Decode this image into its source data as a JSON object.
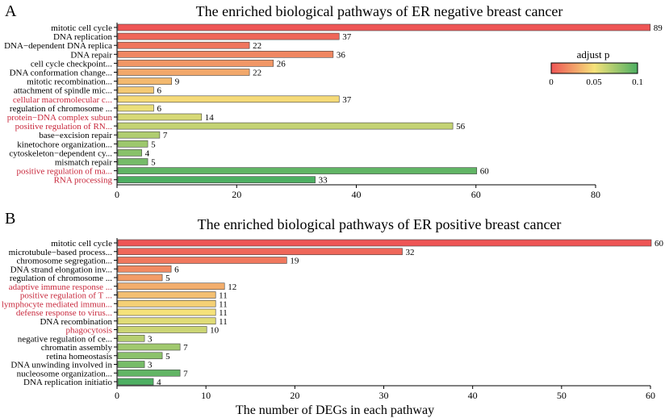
{
  "chart_data": [
    {
      "type": "bar",
      "orientation": "horizontal",
      "panel": "A",
      "title": "The enriched biological pathways of ER negative breast cancer",
      "categories": [
        "mitotic cell cycle",
        "DNA replication",
        "DNA−dependent DNA replica",
        "DNA repair",
        "cell cycle checkpoint...",
        "DNA conformation change...",
        "mitotic recombination...",
        "attachment of spindle mic...",
        "cellular macromolecular c...",
        "regulation of chromosome ...",
        "protein−DNA complex subun",
        "positive regulation of RN...",
        "base−excision repair",
        "kinetochore organization...",
        "cytoskeleton−dependent cy...",
        "mismatch repair",
        "positive regulation of ma...",
        "RNA processing"
      ],
      "values": [
        89,
        37,
        22,
        36,
        26,
        22,
        9,
        6,
        37,
        6,
        14,
        56,
        7,
        5,
        4,
        5,
        60,
        33
      ],
      "highlighted": [
        false,
        false,
        false,
        false,
        false,
        false,
        false,
        false,
        true,
        false,
        true,
        true,
        false,
        false,
        false,
        false,
        true,
        true
      ],
      "xlim": [
        0,
        80
      ],
      "xticks": [
        0,
        20,
        40,
        60,
        80
      ],
      "xlabel": ""
    },
    {
      "type": "bar",
      "orientation": "horizontal",
      "panel": "B",
      "title": "The enriched biological pathways of ER positive breast cancer",
      "categories": [
        "mitotic cell cycle",
        "microtubule−based process...",
        "chromosome segregation...",
        "DNA strand elongation inv...",
        "regulation of chromosome ...",
        "adaptive immune response ...",
        "positive regulation of T ...",
        "lymphocyte mediated immun...",
        "defense response to virus...",
        "DNA recombination",
        "phagocytosis",
        "negative regulation of ce...",
        "chromatin assembly",
        "retina homeostasis",
        "DNA unwinding involved in",
        "nucleosome organization...",
        "DNA replication initiatio"
      ],
      "values": [
        60,
        32,
        19,
        6,
        5,
        12,
        11,
        11,
        11,
        11,
        10,
        3,
        7,
        5,
        3,
        7,
        4
      ],
      "highlighted": [
        false,
        false,
        false,
        false,
        false,
        true,
        true,
        true,
        true,
        false,
        true,
        false,
        false,
        false,
        false,
        false,
        false
      ],
      "xlim": [
        0,
        60
      ],
      "xticks": [
        0,
        10,
        20,
        30,
        40,
        50,
        60
      ],
      "xlabel": "The number of DEGs in each pathway"
    }
  ],
  "legend": {
    "title": "adjust p",
    "ticks": [
      "0",
      "0.05",
      "0.1"
    ],
    "colors": [
      "#ee5555",
      "#f5e27a",
      "#4daf62"
    ]
  },
  "highlight_color": "#c8283c"
}
